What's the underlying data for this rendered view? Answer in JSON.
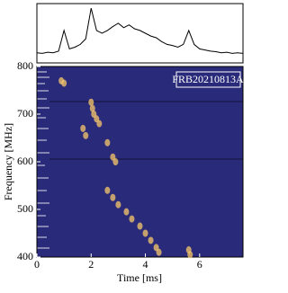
{
  "chart_data": [
    {
      "type": "line",
      "color": "#000000",
      "xlim": [
        0,
        7.6
      ],
      "ylim": [
        0,
        1
      ],
      "x": [
        0,
        0.2,
        0.4,
        0.6,
        0.8,
        1.0,
        1.2,
        1.4,
        1.6,
        1.8,
        2.0,
        2.2,
        2.4,
        2.6,
        2.8,
        3.0,
        3.2,
        3.4,
        3.6,
        3.8,
        4.0,
        4.2,
        4.4,
        4.6,
        4.8,
        5.0,
        5.2,
        5.4,
        5.6,
        5.8,
        6.0,
        6.2,
        6.4,
        6.6,
        6.8,
        7.0,
        7.2,
        7.4,
        7.6
      ],
      "values": [
        0.15,
        0.14,
        0.16,
        0.15,
        0.18,
        0.55,
        0.22,
        0.25,
        0.3,
        0.4,
        0.95,
        0.55,
        0.5,
        0.55,
        0.62,
        0.68,
        0.6,
        0.65,
        0.58,
        0.55,
        0.5,
        0.45,
        0.42,
        0.35,
        0.3,
        0.28,
        0.25,
        0.3,
        0.55,
        0.3,
        0.22,
        0.2,
        0.18,
        0.17,
        0.15,
        0.16,
        0.14,
        0.15,
        0.14
      ]
    },
    {
      "type": "scatter",
      "color": "#f7c86a",
      "annotation": "FRB20210813A",
      "xlabel": "Time [ms]",
      "ylabel": "Frequency [MHz]",
      "xlim": [
        0,
        7.6
      ],
      "ylim": [
        400,
        800
      ],
      "xticks": [
        0,
        2,
        4,
        6
      ],
      "yticks": [
        400,
        500,
        600,
        700,
        800
      ],
      "x": [
        0.9,
        1.0,
        1.7,
        1.8,
        2.0,
        2.05,
        2.1,
        2.2,
        2.3,
        2.6,
        2.8,
        2.9,
        2.6,
        2.8,
        3.0,
        3.3,
        3.5,
        3.8,
        4.0,
        4.2,
        4.4,
        4.5,
        5.6,
        5.65
      ],
      "y": [
        770,
        765,
        670,
        655,
        725,
        712,
        700,
        690,
        680,
        640,
        610,
        600,
        540,
        525,
        510,
        495,
        480,
        465,
        450,
        435,
        420,
        410,
        415,
        405
      ]
    }
  ]
}
